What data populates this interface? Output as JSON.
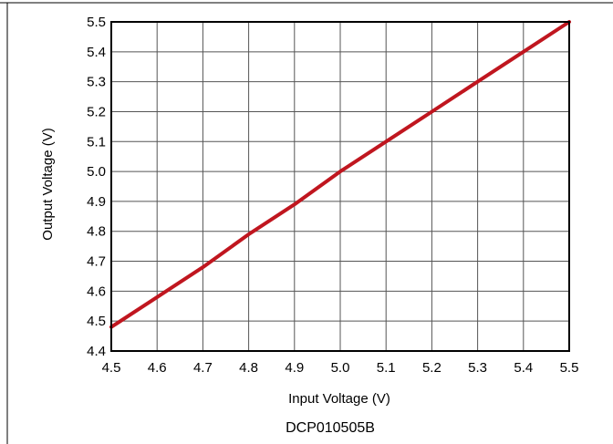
{
  "chart_data": {
    "type": "line",
    "title": "",
    "xlabel": "Input Voltage (V)",
    "ylabel": "Output Voltage (V)",
    "xlim": [
      4.5,
      5.5
    ],
    "ylim": [
      4.4,
      5.5
    ],
    "xticks": [
      "4.5",
      "4.6",
      "4.7",
      "4.8",
      "4.9",
      "5.0",
      "5.1",
      "5.2",
      "5.3",
      "5.4",
      "5.5"
    ],
    "yticks": [
      "4.4",
      "4.5",
      "4.6",
      "4.7",
      "4.8",
      "4.9",
      "5.0",
      "5.1",
      "5.2",
      "5.3",
      "5.4",
      "5.5"
    ],
    "grid": true,
    "series": [
      {
        "color": "#c0161f",
        "x": [
          4.5,
          4.6,
          4.7,
          4.8,
          4.9,
          5.0,
          5.1,
          5.2,
          5.3,
          5.4,
          5.5
        ],
        "y": [
          4.48,
          4.58,
          4.68,
          4.79,
          4.89,
          5.0,
          5.1,
          5.2,
          5.3,
          5.4,
          5.5
        ]
      }
    ],
    "caption": "DCP010505B"
  }
}
